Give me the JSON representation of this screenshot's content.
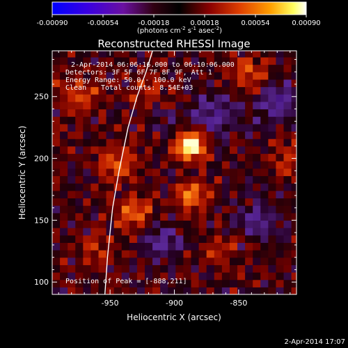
{
  "chart_data": {
    "type": "heatmap",
    "title": "Reconstructed RHESSI Image",
    "xlabel": "Heliocentric X (arcsec)",
    "ylabel": "Heliocentric Y (arcsec)",
    "xlim": [
      -995,
      -805
    ],
    "ylim": [
      90,
      287
    ],
    "x_ticks": [
      -950,
      -900,
      -850
    ],
    "y_ticks": [
      100,
      150,
      200,
      250
    ],
    "colorbar": {
      "colormap": "red-temperature",
      "range": [
        -0.0009,
        0.0009
      ],
      "ticks": [
        "-0.00090",
        "-0.00054",
        "-0.00018",
        "0.00018",
        "0.00054",
        "0.00090"
      ],
      "label_prefix": "(photons cm",
      "label_unit_sup1": "-2",
      "label_mid": " s",
      "label_unit_sup2": "-1",
      "label_mid2": " asec",
      "label_unit_sup3": "-2",
      "label_suffix": ")"
    },
    "annotations": [
      "2-Apr-2014 06:06:16.000 to 06:10:06.000",
      "Detectors: 3F 5F 6F 7F 8F 9F, Att 1",
      "Energy Range: 50.0 - 100.0 keV",
      "Clean",
      "Total counts: 8.54E+03"
    ],
    "peak_label": "Position of Peak = [-888,211]",
    "peak": {
      "x": -888,
      "y": 211
    },
    "sources": [
      {
        "x": -888,
        "y": 211,
        "amp": 1.05,
        "sigma": 8
      },
      {
        "x": -886,
        "y": 170,
        "amp": 0.55,
        "sigma": 9
      },
      {
        "x": -931,
        "y": 155,
        "amp": 0.45,
        "sigma": 10
      },
      {
        "x": -945,
        "y": 197,
        "amp": 0.4,
        "sigma": 10
      },
      {
        "x": -842,
        "y": 268,
        "amp": 0.4,
        "sigma": 11
      },
      {
        "x": -974,
        "y": 252,
        "amp": 0.35,
        "sigma": 12
      },
      {
        "x": -920,
        "y": 255,
        "amp": 0.3,
        "sigma": 10
      },
      {
        "x": -810,
        "y": 200,
        "amp": 0.35,
        "sigma": 9
      },
      {
        "x": -862,
        "y": 128,
        "amp": 0.28,
        "sigma": 9
      },
      {
        "x": -960,
        "y": 125,
        "amp": 0.25,
        "sigma": 10
      },
      {
        "x": -870,
        "y": 235,
        "amp": -0.35,
        "sigma": 12
      },
      {
        "x": -820,
        "y": 245,
        "amp": -0.4,
        "sigma": 12
      },
      {
        "x": -910,
        "y": 135,
        "amp": -0.3,
        "sigma": 12
      },
      {
        "x": -835,
        "y": 150,
        "amp": -0.3,
        "sigma": 12
      },
      {
        "x": -905,
        "y": 230,
        "amp": -0.2,
        "sigma": 9
      }
    ],
    "limb_curve": [
      {
        "x": -917,
        "y": 287
      },
      {
        "x": -922,
        "y": 270
      },
      {
        "x": -929,
        "y": 250
      },
      {
        "x": -936,
        "y": 225
      },
      {
        "x": -943,
        "y": 190
      },
      {
        "x": -948,
        "y": 160
      },
      {
        "x": -952,
        "y": 120
      },
      {
        "x": -954,
        "y": 90
      }
    ]
  },
  "footer": {
    "timestamp": "2-Apr-2014 17:07"
  }
}
